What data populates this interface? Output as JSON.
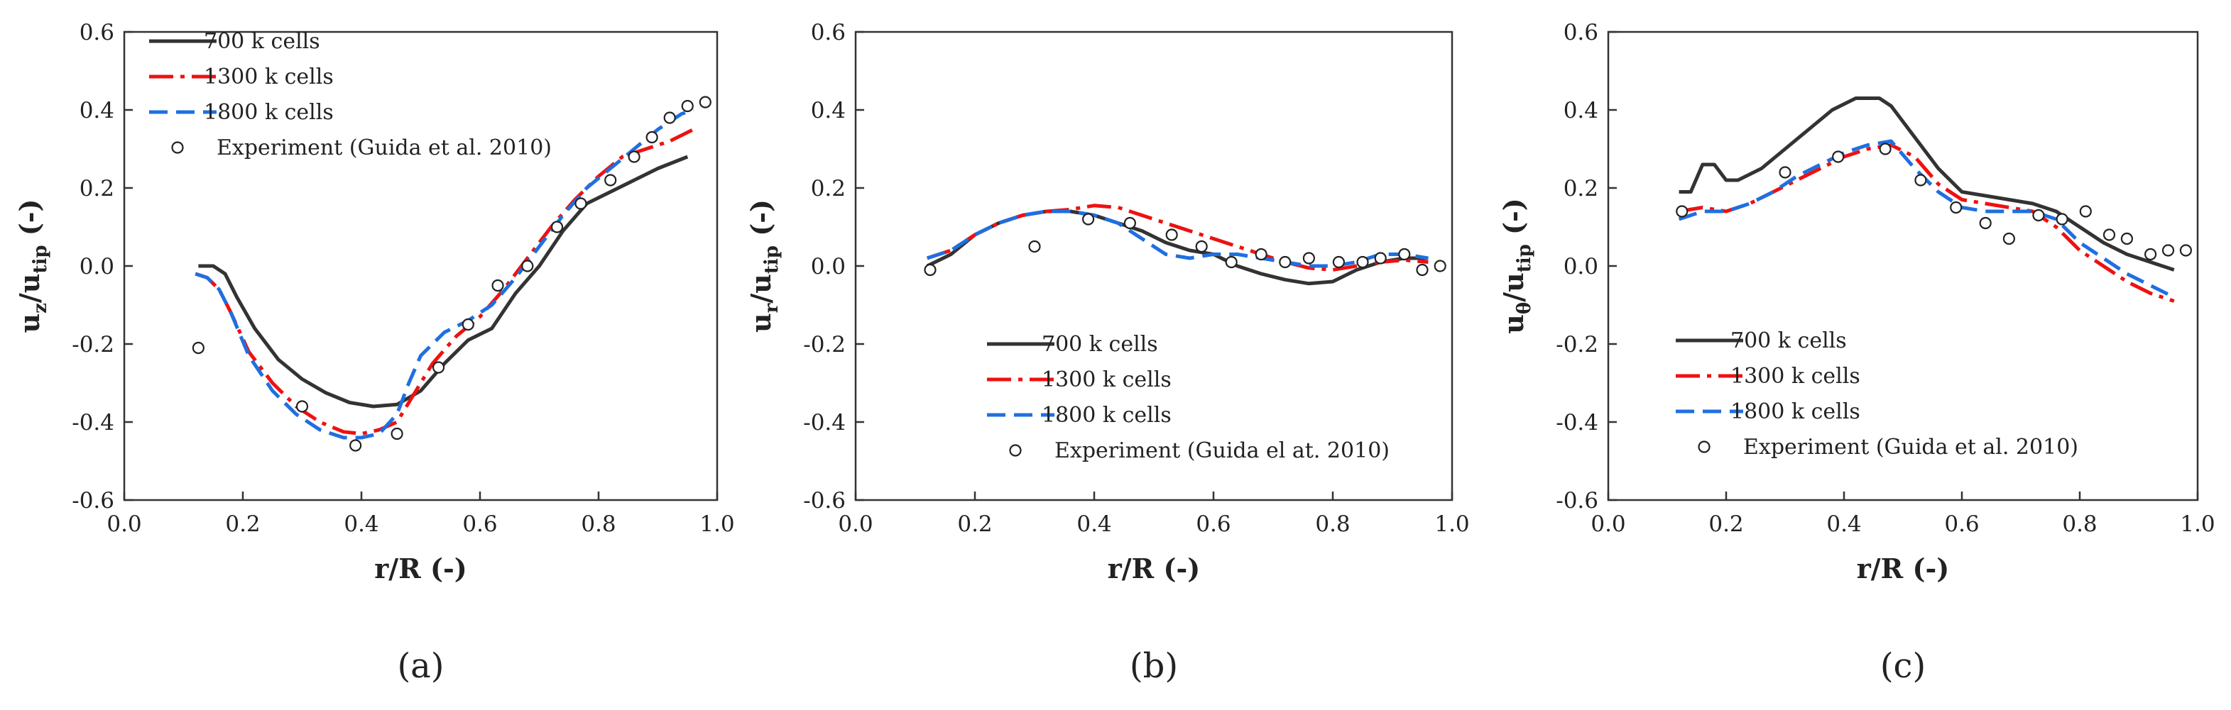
{
  "chart_data": [
    {
      "type": "line",
      "panel_label": "(a)",
      "title": "",
      "xlabel": "r/R (-)",
      "ylabel": "u_z/u_tip (-)",
      "ylabel_main": "u",
      "ylabel_sub": "z",
      "ylabel_mid": "/u",
      "ylabel_sub2": "tip",
      "ylabel_tail": " (-)",
      "xlim": [
        0.0,
        1.0
      ],
      "ylim": [
        -0.6,
        0.6
      ],
      "xticks": [
        "0.0",
        "0.2",
        "0.4",
        "0.6",
        "0.8",
        "1.0"
      ],
      "yticks": [
        "-0.6",
        "-0.4",
        "-0.2",
        "0.0",
        "0.2",
        "0.4",
        "0.6"
      ],
      "legend_position": "top-left",
      "series": [
        {
          "name": "700 k cells",
          "style": "solid",
          "color": "#333333",
          "x": [
            0.125,
            0.15,
            0.17,
            0.19,
            0.22,
            0.26,
            0.3,
            0.34,
            0.38,
            0.42,
            0.46,
            0.5,
            0.54,
            0.58,
            0.62,
            0.66,
            0.7,
            0.74,
            0.78,
            0.82,
            0.86,
            0.9,
            0.95
          ],
          "y": [
            0.0,
            0.0,
            -0.02,
            -0.08,
            -0.16,
            -0.24,
            -0.29,
            -0.325,
            -0.35,
            -0.36,
            -0.355,
            -0.32,
            -0.25,
            -0.19,
            -0.16,
            -0.07,
            0.0,
            0.09,
            0.16,
            0.19,
            0.22,
            0.25,
            0.28
          ]
        },
        {
          "name": "1300 k cells",
          "style": "dashdot",
          "color": "#ee1111",
          "x": [
            0.12,
            0.14,
            0.16,
            0.18,
            0.21,
            0.25,
            0.29,
            0.33,
            0.37,
            0.4,
            0.43,
            0.46,
            0.48,
            0.52,
            0.56,
            0.6,
            0.64,
            0.68,
            0.72,
            0.76,
            0.8,
            0.84,
            0.88,
            0.92,
            0.96
          ],
          "y": [
            -0.02,
            -0.03,
            -0.06,
            -0.12,
            -0.22,
            -0.3,
            -0.36,
            -0.4,
            -0.425,
            -0.43,
            -0.42,
            -0.4,
            -0.35,
            -0.25,
            -0.18,
            -0.13,
            -0.06,
            0.02,
            0.1,
            0.17,
            0.23,
            0.28,
            0.3,
            0.32,
            0.35
          ]
        },
        {
          "name": "1800 k cells",
          "style": "dash",
          "color": "#1f6fe0",
          "x": [
            0.12,
            0.14,
            0.16,
            0.18,
            0.21,
            0.25,
            0.29,
            0.33,
            0.37,
            0.4,
            0.43,
            0.46,
            0.48,
            0.5,
            0.54,
            0.58,
            0.62,
            0.66,
            0.7,
            0.74,
            0.78,
            0.82,
            0.86,
            0.9,
            0.94,
            0.96
          ],
          "y": [
            -0.02,
            -0.03,
            -0.06,
            -0.12,
            -0.23,
            -0.32,
            -0.38,
            -0.42,
            -0.44,
            -0.44,
            -0.43,
            -0.38,
            -0.3,
            -0.23,
            -0.17,
            -0.14,
            -0.1,
            -0.03,
            0.05,
            0.13,
            0.2,
            0.25,
            0.3,
            0.35,
            0.39,
            0.4
          ]
        }
      ],
      "experiment": {
        "name": "Experiment (Guida et al. 2010)",
        "x": [
          0.125,
          0.3,
          0.39,
          0.46,
          0.53,
          0.58,
          0.63,
          0.68,
          0.73,
          0.77,
          0.82,
          0.86,
          0.89,
          0.92,
          0.95,
          0.98
        ],
        "y": [
          -0.21,
          -0.36,
          -0.46,
          -0.43,
          -0.26,
          -0.15,
          -0.05,
          0.0,
          0.1,
          0.16,
          0.22,
          0.28,
          0.33,
          0.38,
          0.41,
          0.42
        ]
      }
    },
    {
      "type": "line",
      "panel_label": "(b)",
      "title": "",
      "xlabel": "r/R (-)",
      "ylabel": "u_r/u_tip (-)",
      "ylabel_main": "u",
      "ylabel_sub": "r",
      "ylabel_mid": "/u",
      "ylabel_sub2": "tip",
      "ylabel_tail": " (-)",
      "xlim": [
        0.0,
        1.0
      ],
      "ylim": [
        -0.6,
        0.6
      ],
      "xticks": [
        "0.0",
        "0.2",
        "0.4",
        "0.6",
        "0.8",
        "1.0"
      ],
      "yticks": [
        "-0.6",
        "-0.4",
        "-0.2",
        "0.0",
        "0.2",
        "0.4",
        "0.6"
      ],
      "legend_position": "bottom-left",
      "series": [
        {
          "name": "700 k cells",
          "style": "solid",
          "color": "#333333",
          "x": [
            0.12,
            0.16,
            0.2,
            0.24,
            0.28,
            0.32,
            0.36,
            0.4,
            0.44,
            0.48,
            0.52,
            0.56,
            0.6,
            0.64,
            0.68,
            0.72,
            0.76,
            0.8,
            0.84,
            0.88,
            0.92,
            0.96
          ],
          "y": [
            0.0,
            0.03,
            0.08,
            0.11,
            0.13,
            0.14,
            0.14,
            0.13,
            0.11,
            0.09,
            0.06,
            0.04,
            0.03,
            0.0,
            -0.02,
            -0.035,
            -0.045,
            -0.04,
            -0.01,
            0.01,
            0.02,
            0.02
          ]
        },
        {
          "name": "1300 k cells",
          "style": "dashdot",
          "color": "#ee1111",
          "x": [
            0.12,
            0.16,
            0.2,
            0.24,
            0.28,
            0.32,
            0.36,
            0.4,
            0.44,
            0.48,
            0.52,
            0.56,
            0.6,
            0.64,
            0.68,
            0.72,
            0.76,
            0.8,
            0.84,
            0.88,
            0.92,
            0.96
          ],
          "y": [
            0.02,
            0.04,
            0.08,
            0.11,
            0.13,
            0.14,
            0.145,
            0.155,
            0.15,
            0.13,
            0.11,
            0.09,
            0.07,
            0.05,
            0.03,
            0.01,
            -0.005,
            -0.01,
            0.0,
            0.01,
            0.015,
            0.01
          ]
        },
        {
          "name": "1800 k cells",
          "style": "dash",
          "color": "#1f6fe0",
          "x": [
            0.12,
            0.16,
            0.2,
            0.24,
            0.28,
            0.32,
            0.36,
            0.4,
            0.44,
            0.48,
            0.52,
            0.56,
            0.6,
            0.64,
            0.68,
            0.72,
            0.76,
            0.8,
            0.84,
            0.88,
            0.92,
            0.96
          ],
          "y": [
            0.02,
            0.04,
            0.08,
            0.11,
            0.13,
            0.14,
            0.14,
            0.13,
            0.11,
            0.07,
            0.03,
            0.02,
            0.03,
            0.03,
            0.02,
            0.01,
            0.0,
            0.0,
            0.01,
            0.03,
            0.03,
            0.02
          ]
        }
      ],
      "experiment": {
        "name": "Experiment (Guida el at. 2010)",
        "x": [
          0.125,
          0.3,
          0.39,
          0.46,
          0.53,
          0.58,
          0.63,
          0.68,
          0.72,
          0.76,
          0.81,
          0.85,
          0.88,
          0.92,
          0.95,
          0.98
        ],
        "y": [
          -0.01,
          0.05,
          0.12,
          0.11,
          0.08,
          0.05,
          0.01,
          0.03,
          0.01,
          0.02,
          0.01,
          0.01,
          0.02,
          0.03,
          -0.01,
          0.0
        ]
      }
    },
    {
      "type": "line",
      "panel_label": "(c)",
      "title": "",
      "xlabel": "r/R (-)",
      "ylabel": "u_θ/u_tip (-)",
      "ylabel_main": "u",
      "ylabel_sub": "θ",
      "ylabel_mid": "/u",
      "ylabel_sub2": "tip",
      "ylabel_tail": " (-)",
      "xlim": [
        0.0,
        1.0
      ],
      "ylim": [
        -0.6,
        0.6
      ],
      "xticks": [
        "0.0",
        "0.2",
        "0.4",
        "0.6",
        "0.8",
        "1.0"
      ],
      "yticks": [
        "-0.6",
        "-0.4",
        "-0.2",
        "0.0",
        "0.2",
        "0.4",
        "0.6"
      ],
      "legend_position": "bottom-left",
      "series": [
        {
          "name": "700 k cells",
          "style": "solid",
          "color": "#333333",
          "x": [
            0.12,
            0.14,
            0.16,
            0.18,
            0.2,
            0.22,
            0.26,
            0.3,
            0.34,
            0.38,
            0.42,
            0.46,
            0.48,
            0.52,
            0.56,
            0.6,
            0.64,
            0.68,
            0.72,
            0.76,
            0.8,
            0.84,
            0.88,
            0.92,
            0.96
          ],
          "y": [
            0.19,
            0.19,
            0.26,
            0.26,
            0.22,
            0.22,
            0.25,
            0.3,
            0.35,
            0.4,
            0.43,
            0.43,
            0.41,
            0.33,
            0.25,
            0.19,
            0.18,
            0.17,
            0.16,
            0.14,
            0.1,
            0.06,
            0.03,
            0.01,
            -0.01
          ]
        },
        {
          "name": "1300 k cells",
          "style": "dashdot",
          "color": "#ee1111",
          "x": [
            0.12,
            0.16,
            0.2,
            0.24,
            0.28,
            0.32,
            0.36,
            0.4,
            0.44,
            0.48,
            0.52,
            0.56,
            0.6,
            0.64,
            0.68,
            0.72,
            0.76,
            0.8,
            0.84,
            0.88,
            0.92,
            0.96
          ],
          "y": [
            0.14,
            0.15,
            0.14,
            0.16,
            0.19,
            0.22,
            0.25,
            0.28,
            0.3,
            0.31,
            0.28,
            0.21,
            0.17,
            0.16,
            0.15,
            0.14,
            0.1,
            0.04,
            0.0,
            -0.04,
            -0.07,
            -0.09
          ]
        },
        {
          "name": "1800 k cells",
          "style": "dash",
          "color": "#1f6fe0",
          "x": [
            0.12,
            0.16,
            0.2,
            0.24,
            0.28,
            0.32,
            0.36,
            0.4,
            0.44,
            0.48,
            0.52,
            0.56,
            0.6,
            0.64,
            0.68,
            0.72,
            0.76,
            0.8,
            0.84,
            0.88,
            0.92,
            0.96
          ],
          "y": [
            0.12,
            0.14,
            0.14,
            0.16,
            0.19,
            0.23,
            0.26,
            0.29,
            0.31,
            0.32,
            0.25,
            0.19,
            0.15,
            0.14,
            0.14,
            0.14,
            0.12,
            0.06,
            0.02,
            -0.02,
            -0.05,
            -0.08
          ]
        }
      ],
      "experiment": {
        "name": "Experiment (Guida et al. 2010)",
        "x": [
          0.125,
          0.3,
          0.39,
          0.47,
          0.53,
          0.59,
          0.64,
          0.68,
          0.73,
          0.77,
          0.81,
          0.85,
          0.88,
          0.92,
          0.95,
          0.98
        ],
        "y": [
          0.14,
          0.24,
          0.28,
          0.3,
          0.22,
          0.15,
          0.11,
          0.07,
          0.13,
          0.12,
          0.14,
          0.08,
          0.07,
          0.03,
          0.04,
          0.04
        ]
      }
    }
  ]
}
